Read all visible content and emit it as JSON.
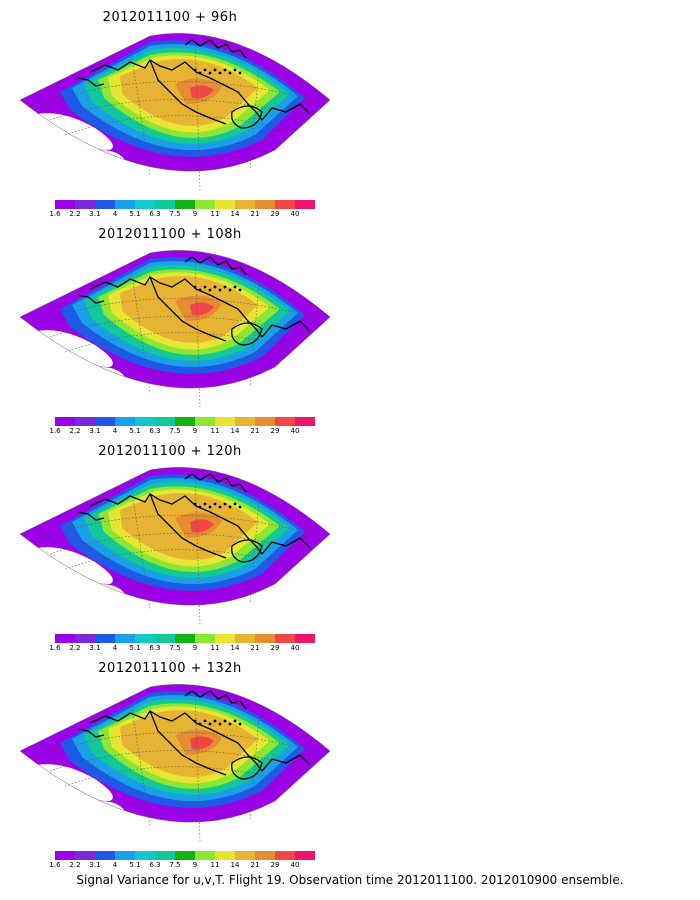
{
  "panels": [
    {
      "title": "2012011100 + 96h"
    },
    {
      "title": "2012011100 + 108h"
    },
    {
      "title": "2012011100 + 120h"
    },
    {
      "title": "2012011100 + 132h"
    }
  ],
  "colorbar": {
    "labels": [
      "1.6",
      "2.2",
      "3.1",
      "4",
      "5.1",
      "6.3",
      "7.5",
      "9",
      "11",
      "14",
      "21",
      "29",
      "40"
    ],
    "colors": [
      "#9b00e6",
      "#7a2bd9",
      "#1e5ae6",
      "#1aa0e6",
      "#12c8c8",
      "#12c896",
      "#12b412",
      "#8ce632",
      "#e6e632",
      "#e6b432",
      "#e68c32",
      "#f04646",
      "#f0146e"
    ]
  },
  "caption": "Signal Variance for u,v,T. Flight 19. Observation time 2012011100. 2012010900 ensemble."
}
